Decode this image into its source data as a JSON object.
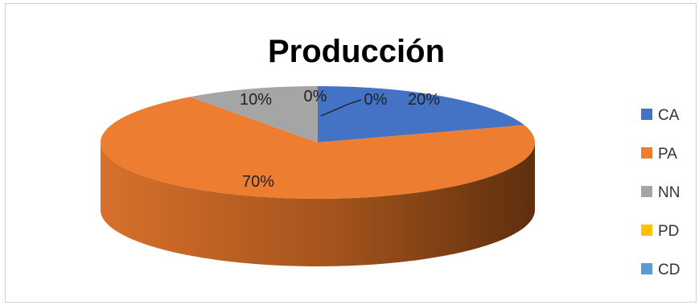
{
  "chart_data": {
    "type": "pie",
    "title": "Producción",
    "categories": [
      "CA",
      "PA",
      "NN",
      "PD",
      "CD"
    ],
    "values": [
      20,
      70,
      10,
      0,
      0
    ],
    "data_labels": [
      "20%",
      "70%",
      "10%",
      "0%",
      "0%"
    ],
    "colors": [
      "#4472C4",
      "#ED7D31",
      "#A5A5A5",
      "#FFC000",
      "#5B9BD5"
    ],
    "style": "3d",
    "legend": "right"
  }
}
